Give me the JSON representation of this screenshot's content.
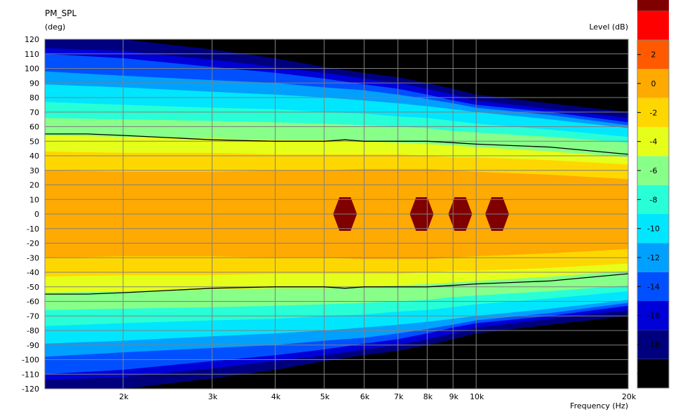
{
  "chart_data": {
    "type": "heatmap",
    "title": "PM_SPL",
    "ylabel": "(deg)",
    "xlabel": "Frequency  (Hz)",
    "colorbar_label": "Level  (dB)",
    "x_scale": "log",
    "xlim": [
      1400,
      20000
    ],
    "ylim": [
      -120,
      120
    ],
    "x_ticks": [
      {
        "value": 2000,
        "label": "2k"
      },
      {
        "value": 3000,
        "label": "3k"
      },
      {
        "value": 4000,
        "label": "4k"
      },
      {
        "value": 5000,
        "label": "5k"
      },
      {
        "value": 6000,
        "label": "6k"
      },
      {
        "value": 7000,
        "label": "7k"
      },
      {
        "value": 8000,
        "label": "8k"
      },
      {
        "value": 9000,
        "label": "9k"
      },
      {
        "value": 10000,
        "label": "10k"
      },
      {
        "value": 20000,
        "label": "20k"
      }
    ],
    "y_ticks": [
      120,
      110,
      100,
      90,
      80,
      70,
      60,
      50,
      40,
      30,
      20,
      10,
      0,
      -10,
      -20,
      -30,
      -40,
      -50,
      -60,
      -70,
      -80,
      -90,
      -100,
      -110,
      -120
    ],
    "colorbar": {
      "range": [
        -21,
        3
      ],
      "ticks": [
        2,
        0,
        -2,
        -4,
        -6,
        -8,
        -10,
        -12,
        -14,
        -16,
        -18,
        -20
      ],
      "colors": [
        "#000000",
        "#00007f",
        "#0000d8",
        "#0050ff",
        "#00a0ff",
        "#00e6ff",
        "#28ffd6",
        "#88ff88",
        "#e6ff1a",
        "#ffd700",
        "#ffaa00",
        "#ff5a00",
        "#ff0000",
        "#800000"
      ]
    },
    "contours": {
      "frequencies": [
        1400,
        2000,
        3000,
        4000,
        5000,
        6000,
        7000,
        8000,
        9000,
        10000,
        14000,
        20000
      ],
      "levels": [
        {
          "db": -20,
          "angle": [
            120,
            120,
            113,
            107,
            101,
            97,
            94,
            90,
            86,
            82,
            76,
            70
          ]
        },
        {
          "db": -18,
          "angle": [
            114,
            112,
            106,
            101,
            97,
            93,
            90,
            86,
            82,
            78,
            72,
            66
          ]
        },
        {
          "db": -16,
          "angle": [
            110,
            107,
            101,
            97,
            93,
            89,
            86,
            82,
            78,
            75,
            70,
            63
          ]
        },
        {
          "db": -14,
          "angle": [
            98,
            95,
            92,
            90,
            87,
            85,
            82,
            79,
            76,
            73,
            68,
            61
          ]
        },
        {
          "db": -12,
          "angle": [
            89,
            87,
            84,
            82,
            80,
            78,
            76,
            74,
            72,
            70,
            65,
            59
          ]
        },
        {
          "db": -10,
          "angle": [
            77,
            75,
            73,
            72,
            70,
            69,
            67,
            66,
            64,
            62,
            58,
            53
          ]
        },
        {
          "db": -8,
          "angle": [
            66,
            65,
            64,
            63,
            62,
            61,
            60,
            59,
            57,
            56,
            53,
            49
          ]
        },
        {
          "db": -6,
          "angle": [
            54,
            53,
            52,
            51,
            51,
            50,
            49,
            48,
            47,
            46,
            43,
            39
          ]
        },
        {
          "db": -4,
          "angle": [
            43,
            42,
            42,
            41,
            41,
            41,
            41,
            40,
            39,
            39,
            37,
            34
          ]
        },
        {
          "db": -2,
          "angle": [
            30,
            29,
            29,
            30,
            30,
            31,
            31,
            31,
            30,
            29,
            27,
            24
          ]
        }
      ],
      "minus6_line": {
        "freq": [
          1400,
          1700,
          2000,
          3000,
          4000,
          5000,
          5500,
          6000,
          7000,
          8000,
          9000,
          10000,
          14000,
          20000
        ],
        "angle": [
          55,
          55,
          54,
          51,
          50,
          50,
          51,
          50,
          50,
          50,
          49,
          48,
          46,
          41
        ]
      }
    },
    "hot_spots": [
      {
        "freq": 5500,
        "angle": 0
      },
      {
        "freq": 7800,
        "angle": 0
      },
      {
        "freq": 9300,
        "angle": 0
      },
      {
        "freq": 11000,
        "angle": 0
      }
    ]
  }
}
